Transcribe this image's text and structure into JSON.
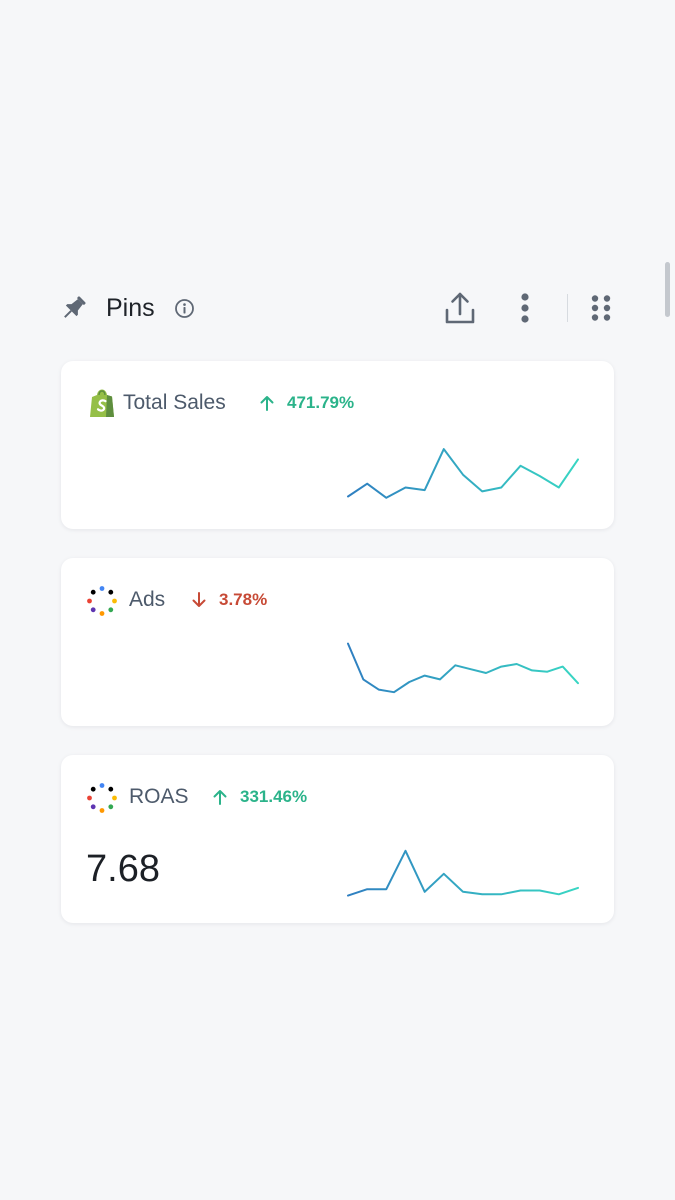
{
  "header": {
    "title": "Pins",
    "icons": {
      "pin": "pin-icon",
      "info": "info-icon",
      "share": "share-upload-icon",
      "more": "more-vertical-icon",
      "grid": "grid-dots-icon"
    }
  },
  "colors": {
    "background": "#f6f7f9",
    "card": "#ffffff",
    "positive": "#2bb38a",
    "negative": "#c74a36",
    "sparkline_start": "#2f7fc1",
    "sparkline_end": "#38d6c3",
    "title_text": "#4d5a6b",
    "icon_gray": "#5f6875",
    "shopify_green": "#95bf47"
  },
  "cards": [
    {
      "title": "Total Sales",
      "logo": "shopify-logo-icon",
      "trend_direction": "up",
      "trend": "471.79%",
      "value": "",
      "sparkline": [
        18,
        38,
        16,
        32,
        28,
        92,
        52,
        26,
        32,
        66,
        50,
        32,
        76
      ]
    },
    {
      "title": "Ads",
      "logo": "ads-dots-logo-icon",
      "trend_direction": "down",
      "trend": "3.78%",
      "value": "",
      "sparkline": [
        96,
        40,
        24,
        20,
        36,
        46,
        40,
        62,
        56,
        50,
        60,
        64,
        54,
        52,
        60,
        34
      ]
    },
    {
      "title": "ROAS",
      "logo": "ads-dots-logo-icon",
      "trend_direction": "up",
      "trend": "331.46%",
      "value": "7.68",
      "sparkline": [
        10,
        20,
        20,
        80,
        16,
        44,
        16,
        12,
        12,
        18,
        18,
        12,
        22
      ]
    }
  ]
}
